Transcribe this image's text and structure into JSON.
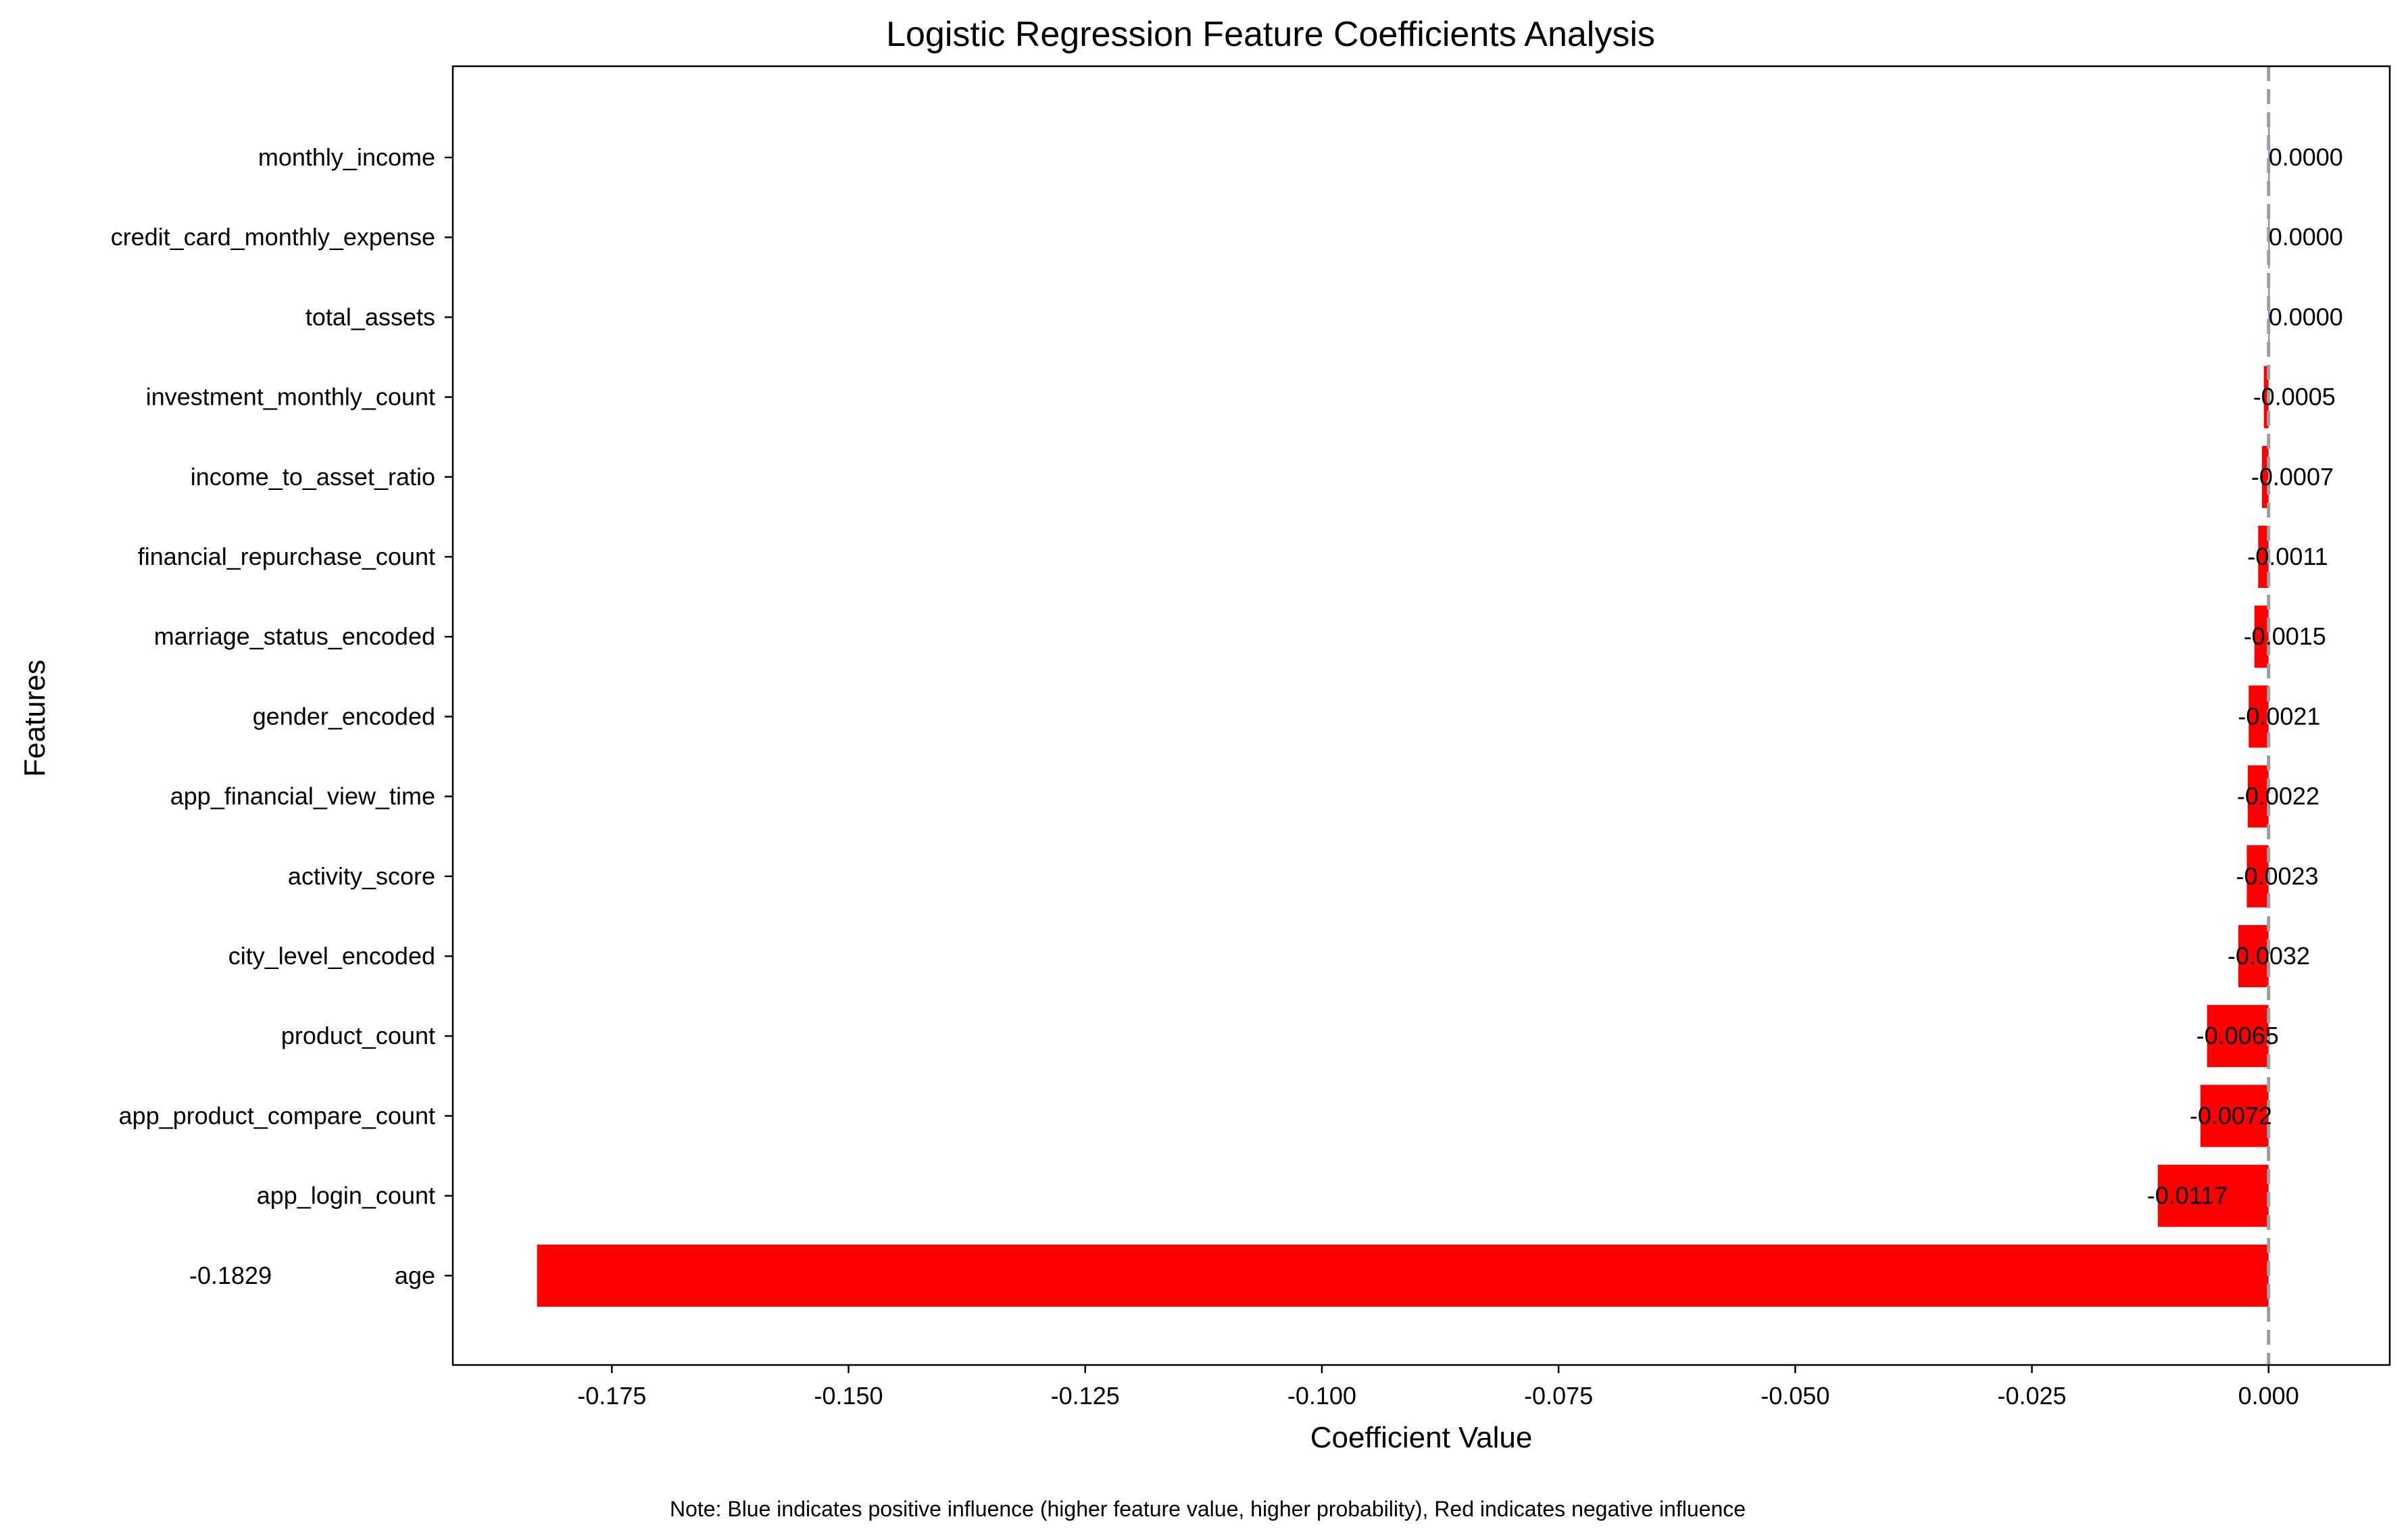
{
  "chart_data": {
    "type": "bar",
    "orientation": "horizontal",
    "title": "Logistic Regression Feature Coefficients Analysis",
    "xlabel": "Coefficient Value",
    "ylabel": "Features",
    "xlim": [
      -0.1918,
      0.0128
    ],
    "xticks": [
      -0.175,
      -0.15,
      -0.125,
      -0.1,
      -0.075,
      -0.05,
      -0.025,
      0.0
    ],
    "xtick_labels": [
      "-0.175",
      "-0.150",
      "-0.125",
      "-0.100",
      "-0.075",
      "-0.050",
      "-0.025",
      "0.000"
    ],
    "grid": false,
    "reference_line": {
      "x": 0,
      "style": "dashed",
      "color": "#9e9e9e"
    },
    "colors": {
      "negative": "#ff0000",
      "positive": "#0000ff"
    },
    "categories": [
      "monthly_income",
      "credit_card_monthly_expense",
      "total_assets",
      "investment_monthly_count",
      "income_to_asset_ratio",
      "financial_repurchase_count",
      "marriage_status_encoded",
      "gender_encoded",
      "app_financial_view_time",
      "activity_score",
      "city_level_encoded",
      "product_count",
      "app_product_compare_count",
      "app_login_count",
      "age"
    ],
    "values": [
      0.0,
      0.0,
      0.0,
      -0.0005,
      -0.0007,
      -0.0011,
      -0.0015,
      -0.0021,
      -0.0022,
      -0.0023,
      -0.0032,
      -0.0065,
      -0.0072,
      -0.0117,
      -0.1829
    ],
    "value_labels": [
      "0.0000",
      "0.0000",
      "0.0000",
      "-0.0005",
      "-0.0007",
      "-0.0011",
      "-0.0015",
      "-0.0021",
      "-0.0022",
      "-0.0023",
      "-0.0032",
      "-0.0065",
      "-0.0072",
      "-0.0117",
      "-0.1829"
    ]
  },
  "note": "Note: Blue indicates positive influence (higher feature value, higher probability), Red indicates negative influence"
}
